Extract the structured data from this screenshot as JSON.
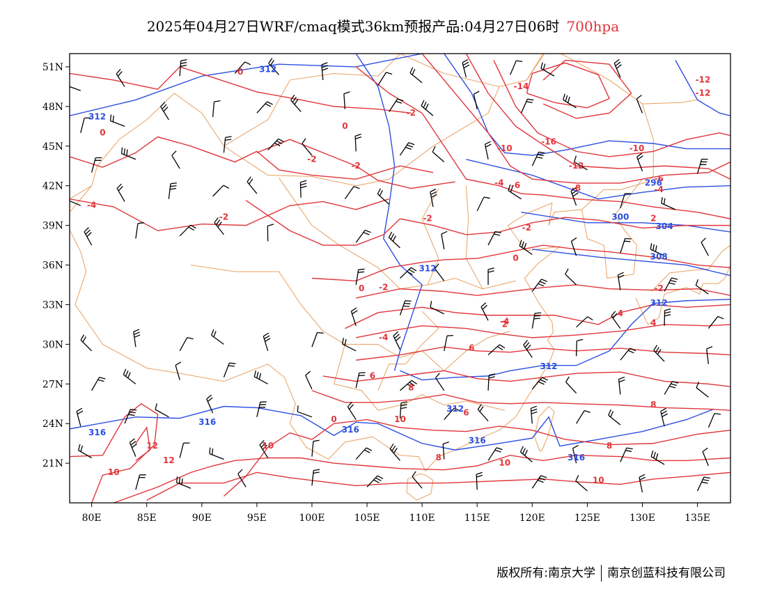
{
  "title": {
    "main": "2025年04月27日WRF/cmaq模式36km预报产品:04月27日06时",
    "level": "700hpa"
  },
  "map": {
    "lon_range": [
      78,
      138
    ],
    "lat_range": [
      18,
      52
    ],
    "lon_ticks": [
      "80E",
      "85E",
      "90E",
      "95E",
      "100E",
      "105E",
      "110E",
      "115E",
      "120E",
      "125E",
      "130E",
      "135E"
    ],
    "lat_ticks": [
      "51N",
      "48N",
      "45N",
      "42N",
      "39N",
      "36N",
      "33N",
      "30N",
      "27N",
      "24N",
      "21N"
    ],
    "colors": {
      "temperature": "#e0353a",
      "geopotential": "#2a4fe0",
      "wind": "#000000",
      "border": "#e8a060"
    },
    "temperature_labels": [
      "0",
      "-2",
      "0",
      "0",
      "-2",
      "-2",
      "-4",
      "-2",
      "-2",
      "-14",
      "-16",
      "-10",
      "-12",
      "-10",
      "-12",
      "-12",
      "-6",
      "-8",
      "-4",
      "-6",
      "-4",
      "-2",
      "0",
      "0",
      "-2",
      "-2",
      "-4",
      "2",
      "4",
      "-4",
      "6",
      "6",
      "8",
      "8",
      "10",
      "10",
      "12",
      "12",
      "10",
      "10",
      "0",
      "6",
      "4",
      "2",
      "8",
      "10",
      "8"
    ],
    "height_labels": [
      "312",
      "312",
      "312",
      "312",
      "312",
      "312",
      "296",
      "300",
      "304",
      "308",
      "316",
      "316",
      "316",
      "316",
      "316"
    ]
  },
  "footer": {
    "left": "版权所有:南京大学",
    "right": "南京创蓝科技有限公司"
  }
}
